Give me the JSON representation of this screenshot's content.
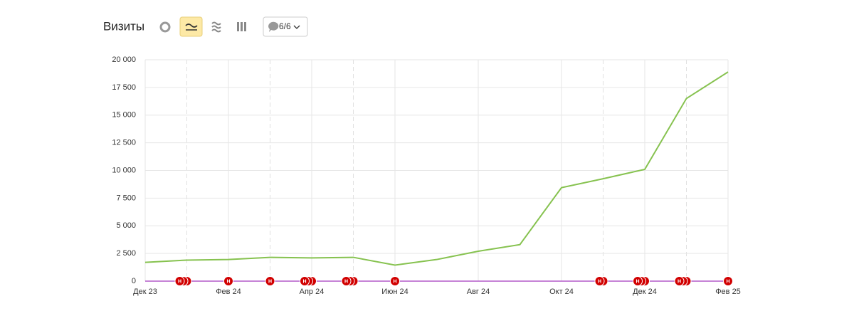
{
  "chart_data": {
    "type": "line",
    "title": "Визиты",
    "comments_label": "6/6",
    "categories": [
      "Дек 23",
      null,
      "Фев 24",
      null,
      "Апр 24",
      null,
      "Июн 24",
      null,
      "Авг 24",
      null,
      "Окт 24",
      null,
      "Дек 24",
      null,
      "Фев 25"
    ],
    "series": [
      {
        "name": "Визиты",
        "color": "#86c24f",
        "values": [
          1700,
          1900,
          1950,
          2150,
          2100,
          2150,
          1450,
          1950,
          2700,
          3300,
          8450,
          9250,
          10100,
          16500,
          18900
        ]
      }
    ],
    "ylim": [
      0,
      20000
    ],
    "yticks": [
      0,
      {
        "value": 2500,
        "label": "2 500"
      },
      {
        "value": 5000,
        "label": "5 000"
      },
      {
        "value": 7500,
        "label": "7 500"
      },
      {
        "value": 10000,
        "label": "10 000"
      },
      {
        "value": 12500,
        "label": "12 500"
      },
      {
        "value": 15000,
        "label": "15 000"
      },
      {
        "value": 17500,
        "label": "17 500"
      },
      {
        "value": 20000,
        "label": "20 000"
      }
    ],
    "grid": true,
    "annotations": [
      {
        "index": 1,
        "count": 3,
        "label": "Н"
      },
      {
        "index": 2,
        "count": 1,
        "label": "Н"
      },
      {
        "index": 3,
        "count": 1,
        "label": "Н"
      },
      {
        "index": 4,
        "count": 3,
        "label": "Н"
      },
      {
        "index": 5,
        "count": 3,
        "label": "Н"
      },
      {
        "index": 6,
        "count": 1,
        "label": "Н"
      },
      {
        "index": 11,
        "count": 2,
        "label": "Н"
      },
      {
        "index": 12,
        "count": 3,
        "label": "Н"
      },
      {
        "index": 13,
        "count": 3,
        "label": "Н"
      },
      {
        "index": 14,
        "count": 1,
        "label": "Н"
      }
    ]
  }
}
